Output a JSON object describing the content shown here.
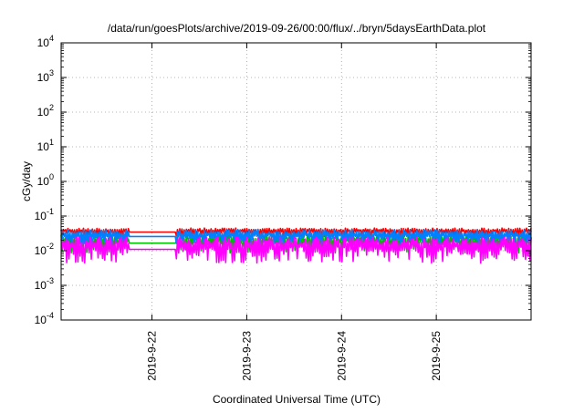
{
  "chart_data": {
    "type": "area",
    "title": "/data/run/goesPlots/archive/2019-09-26/00:00/flux/../bryn/5daysEarthData.plot",
    "xlabel": "Coordinated Universal Time (UTC)",
    "ylabel": "cGy/day",
    "yscale": "log",
    "ylim_exponents": [
      -4,
      4
    ],
    "y_tick_labels": [
      {
        "base": "10",
        "exp": "-4"
      },
      {
        "base": "10",
        "exp": "-3"
      },
      {
        "base": "10",
        "exp": "-2"
      },
      {
        "base": "10",
        "exp": "-1"
      },
      {
        "base": "10",
        "exp": "0"
      },
      {
        "base": "10",
        "exp": "1"
      },
      {
        "base": "10",
        "exp": "2"
      },
      {
        "base": "10",
        "exp": "3"
      },
      {
        "base": "10",
        "exp": "4"
      }
    ],
    "xlim": [
      "2019-09-21T01:00",
      "2019-09-26T00:00"
    ],
    "x_ticks": [
      "2019-9-22",
      "2019-9-23",
      "2019-9-24",
      "2019-9-25"
    ],
    "grid": true,
    "series": [
      {
        "color": "#ff0000",
        "band": [
          0.025,
          0.045
        ]
      },
      {
        "color": "#00c000",
        "band": [
          0.008,
          0.03
        ]
      },
      {
        "color": "#0080ff",
        "band": [
          0.015,
          0.04
        ]
      },
      {
        "color": "#ff00ff",
        "band": [
          0.004,
          0.025
        ]
      }
    ],
    "data_gap": [
      "2019-09-21T18:00",
      "2019-09-22T06:00"
    ]
  }
}
